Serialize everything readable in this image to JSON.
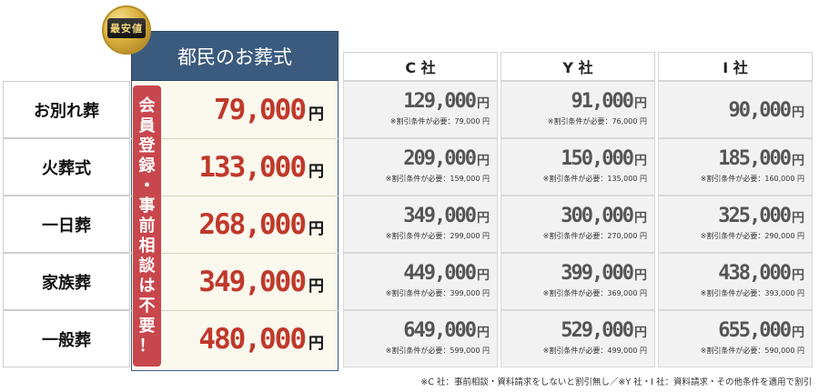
{
  "badge": "最安値",
  "own": {
    "name": "都民のお葬式",
    "strip_chars": [
      "会",
      "員",
      "登",
      "録",
      "・",
      "事",
      "前",
      "相",
      "談",
      "は",
      "不",
      "要",
      "！"
    ]
  },
  "companies": [
    "C 社",
    "Y 社",
    "I 社"
  ],
  "yen": "円",
  "rows": [
    {
      "label": "お別れ葬",
      "own": "79,000",
      "prices": [
        {
          "price": "129,000",
          "note": "※割引条件が必要：79,000 円"
        },
        {
          "price": "91,000",
          "note": "※割引条件が必要：76,000 円"
        },
        {
          "price": "90,000",
          "note": ""
        }
      ]
    },
    {
      "label": "火葬式",
      "own": "133,000",
      "prices": [
        {
          "price": "209,000",
          "note": "※割引条件が必要：159,000 円"
        },
        {
          "price": "150,000",
          "note": "※割引条件が必要：135,000 円"
        },
        {
          "price": "185,000",
          "note": "※割引条件が必要：160,000 円"
        }
      ]
    },
    {
      "label": "一日葬",
      "own": "268,000",
      "prices": [
        {
          "price": "349,000",
          "note": "※割引条件が必要：299,000 円"
        },
        {
          "price": "300,000",
          "note": "※割引条件が必要：270,000 円"
        },
        {
          "price": "325,000",
          "note": "※割引条件が必要：290,000 円"
        }
      ]
    },
    {
      "label": "家族葬",
      "own": "349,000",
      "prices": [
        {
          "price": "449,000",
          "note": "※割引条件が必要：399,000 円"
        },
        {
          "price": "399,000",
          "note": "※割引条件が必要：369,000 円"
        },
        {
          "price": "438,000",
          "note": "※割引条件が必要：393,000 円"
        }
      ]
    },
    {
      "label": "一般葬",
      "own": "480,000",
      "prices": [
        {
          "price": "649,000",
          "note": "※割引条件が必要：599,000 円"
        },
        {
          "price": "529,000",
          "note": "※割引条件が必要：499,000 円"
        },
        {
          "price": "655,000",
          "note": "※割引条件が必要：590,000 円"
        }
      ]
    }
  ],
  "footnote": "※C 社：事前相談・資料請求をしないと割引無し／※Y 社・I 社：資料請求・その他条件を適用で割引"
}
